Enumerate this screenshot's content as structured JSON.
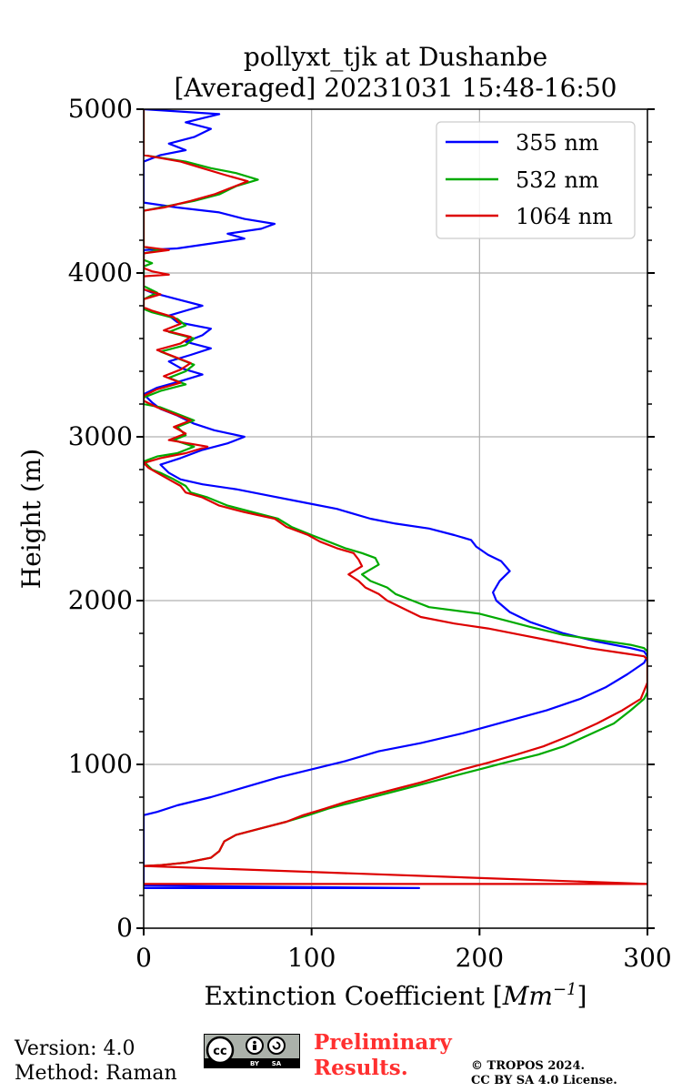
{
  "chart_data": {
    "type": "line",
    "title_line1": "pollyxt_tjk at Dushanbe",
    "title_line2": "[Averaged] 20231031 15:48-16:50",
    "xlabel": "Extinction Coefficient [",
    "xlabel_unit": "Mm",
    "xlabel_exp": "−1",
    "xlabel_end": "]",
    "ylabel": "Height (m)",
    "xlim": [
      0,
      300
    ],
    "ylim": [
      0,
      5000
    ],
    "xticks": [
      "0",
      "100",
      "200",
      "300"
    ],
    "yticks": [
      "0",
      "1000",
      "2000",
      "3000",
      "4000",
      "5000"
    ],
    "grid": true,
    "legend_position": "top-right",
    "series": [
      {
        "name": "355 nm",
        "color": "#0000ff",
        "points": [
          [
            0,
            245
          ],
          [
            164,
            245
          ],
          [
            0,
            260
          ],
          [
            0,
            690
          ],
          [
            8,
            710
          ],
          [
            20,
            750
          ],
          [
            40,
            800
          ],
          [
            60,
            860
          ],
          [
            80,
            920
          ],
          [
            100,
            970
          ],
          [
            120,
            1020
          ],
          [
            140,
            1080
          ],
          [
            165,
            1130
          ],
          [
            190,
            1190
          ],
          [
            215,
            1260
          ],
          [
            240,
            1330
          ],
          [
            260,
            1400
          ],
          [
            275,
            1470
          ],
          [
            288,
            1550
          ],
          [
            298,
            1620
          ],
          [
            300,
            1660
          ],
          [
            298,
            1690
          ],
          [
            290,
            1710
          ],
          [
            270,
            1750
          ],
          [
            250,
            1800
          ],
          [
            230,
            1870
          ],
          [
            218,
            1930
          ],
          [
            210,
            2000
          ],
          [
            208,
            2050
          ],
          [
            212,
            2120
          ],
          [
            218,
            2180
          ],
          [
            213,
            2240
          ],
          [
            205,
            2280
          ],
          [
            198,
            2330
          ],
          [
            195,
            2370
          ],
          [
            185,
            2400
          ],
          [
            170,
            2440
          ],
          [
            150,
            2470
          ],
          [
            135,
            2500
          ],
          [
            115,
            2560
          ],
          [
            95,
            2600
          ],
          [
            75,
            2640
          ],
          [
            55,
            2680
          ],
          [
            35,
            2710
          ],
          [
            22,
            2740
          ],
          [
            15,
            2780
          ],
          [
            10,
            2830
          ],
          [
            22,
            2870
          ],
          [
            35,
            2920
          ],
          [
            50,
            2960
          ],
          [
            60,
            3000
          ],
          [
            42,
            3040
          ],
          [
            30,
            3080
          ],
          [
            20,
            3130
          ],
          [
            10,
            3170
          ],
          [
            5,
            3210
          ],
          [
            0,
            3260
          ],
          [
            8,
            3300
          ],
          [
            22,
            3340
          ],
          [
            35,
            3380
          ],
          [
            22,
            3420
          ],
          [
            15,
            3460
          ],
          [
            28,
            3500
          ],
          [
            40,
            3540
          ],
          [
            25,
            3580
          ],
          [
            35,
            3620
          ],
          [
            40,
            3660
          ],
          [
            20,
            3700
          ],
          [
            15,
            3740
          ],
          [
            35,
            3800
          ],
          [
            20,
            3840
          ],
          [
            5,
            3880
          ],
          [
            0,
            3900
          ],
          [
            0,
            4020
          ],
          [
            0,
            4140
          ],
          [
            20,
            4150
          ],
          [
            40,
            4180
          ],
          [
            60,
            4210
          ],
          [
            50,
            4240
          ],
          [
            70,
            4270
          ],
          [
            78,
            4300
          ],
          [
            60,
            4330
          ],
          [
            45,
            4370
          ],
          [
            20,
            4400
          ],
          [
            0,
            4430
          ],
          [
            0,
            4680
          ],
          [
            10,
            4720
          ],
          [
            25,
            4750
          ],
          [
            15,
            4790
          ],
          [
            30,
            4830
          ],
          [
            40,
            4880
          ],
          [
            25,
            4920
          ],
          [
            45,
            4970
          ],
          [
            0,
            5000
          ]
        ]
      },
      {
        "name": "532 nm",
        "color": "#00aa00",
        "points": [
          [
            0,
            380
          ],
          [
            10,
            385
          ],
          [
            25,
            400
          ],
          [
            40,
            430
          ],
          [
            45,
            470
          ],
          [
            48,
            530
          ],
          [
            55,
            570
          ],
          [
            70,
            610
          ],
          [
            85,
            650
          ],
          [
            98,
            690
          ],
          [
            110,
            730
          ],
          [
            125,
            770
          ],
          [
            140,
            810
          ],
          [
            155,
            850
          ],
          [
            170,
            890
          ],
          [
            185,
            930
          ],
          [
            200,
            970
          ],
          [
            215,
            1010
          ],
          [
            235,
            1060
          ],
          [
            250,
            1110
          ],
          [
            265,
            1180
          ],
          [
            280,
            1250
          ],
          [
            290,
            1330
          ],
          [
            298,
            1400
          ],
          [
            300,
            1440
          ],
          [
            300,
            1690
          ],
          [
            298,
            1710
          ],
          [
            290,
            1730
          ],
          [
            270,
            1760
          ],
          [
            250,
            1790
          ],
          [
            230,
            1840
          ],
          [
            215,
            1880
          ],
          [
            200,
            1920
          ],
          [
            170,
            1960
          ],
          [
            160,
            2000
          ],
          [
            150,
            2040
          ],
          [
            145,
            2080
          ],
          [
            135,
            2120
          ],
          [
            130,
            2160
          ],
          [
            140,
            2220
          ],
          [
            138,
            2260
          ],
          [
            130,
            2290
          ],
          [
            120,
            2320
          ],
          [
            110,
            2360
          ],
          [
            100,
            2400
          ],
          [
            88,
            2450
          ],
          [
            80,
            2500
          ],
          [
            65,
            2540
          ],
          [
            50,
            2580
          ],
          [
            38,
            2630
          ],
          [
            28,
            2660
          ],
          [
            25,
            2700
          ],
          [
            18,
            2740
          ],
          [
            10,
            2780
          ],
          [
            5,
            2800
          ],
          [
            0,
            2850
          ],
          [
            8,
            2880
          ],
          [
            20,
            2900
          ],
          [
            30,
            2940
          ],
          [
            18,
            2980
          ],
          [
            25,
            3010
          ],
          [
            20,
            3060
          ],
          [
            30,
            3100
          ],
          [
            20,
            3140
          ],
          [
            10,
            3180
          ],
          [
            0,
            3200
          ],
          [
            0,
            3240
          ],
          [
            10,
            3280
          ],
          [
            25,
            3320
          ],
          [
            15,
            3360
          ],
          [
            25,
            3400
          ],
          [
            30,
            3440
          ],
          [
            20,
            3480
          ],
          [
            10,
            3520
          ],
          [
            25,
            3560
          ],
          [
            30,
            3600
          ],
          [
            15,
            3640
          ],
          [
            25,
            3680
          ],
          [
            20,
            3720
          ],
          [
            5,
            3760
          ],
          [
            0,
            3780
          ],
          [
            0,
            3840
          ],
          [
            8,
            3880
          ],
          [
            0,
            3920
          ],
          [
            0,
            4040
          ],
          [
            5,
            4060
          ],
          [
            0,
            4080
          ],
          [
            0,
            4120
          ],
          [
            10,
            4140
          ],
          [
            0,
            4160
          ],
          [
            0,
            4380
          ],
          [
            10,
            4400
          ],
          [
            30,
            4440
          ],
          [
            45,
            4480
          ],
          [
            55,
            4530
          ],
          [
            68,
            4570
          ],
          [
            55,
            4610
          ],
          [
            40,
            4640
          ],
          [
            25,
            4680
          ],
          [
            0,
            4720
          ],
          [
            0,
            5000
          ]
        ]
      },
      {
        "name": "1064 nm",
        "color": "#dd0000",
        "points": [
          [
            0,
            270
          ],
          [
            300,
            270
          ],
          [
            0,
            380
          ],
          [
            10,
            385
          ],
          [
            25,
            400
          ],
          [
            40,
            430
          ],
          [
            45,
            470
          ],
          [
            48,
            530
          ],
          [
            55,
            570
          ],
          [
            70,
            610
          ],
          [
            85,
            650
          ],
          [
            95,
            690
          ],
          [
            108,
            730
          ],
          [
            120,
            770
          ],
          [
            135,
            810
          ],
          [
            150,
            850
          ],
          [
            165,
            890
          ],
          [
            178,
            930
          ],
          [
            190,
            970
          ],
          [
            205,
            1010
          ],
          [
            222,
            1060
          ],
          [
            238,
            1110
          ],
          [
            255,
            1180
          ],
          [
            270,
            1250
          ],
          [
            285,
            1330
          ],
          [
            296,
            1400
          ],
          [
            300,
            1500
          ],
          [
            300,
            1640
          ],
          [
            298,
            1660
          ],
          [
            285,
            1680
          ],
          [
            265,
            1710
          ],
          [
            245,
            1750
          ],
          [
            225,
            1790
          ],
          [
            205,
            1830
          ],
          [
            185,
            1860
          ],
          [
            165,
            1900
          ],
          [
            155,
            1950
          ],
          [
            145,
            2000
          ],
          [
            140,
            2040
          ],
          [
            132,
            2080
          ],
          [
            128,
            2120
          ],
          [
            122,
            2160
          ],
          [
            130,
            2210
          ],
          [
            128,
            2250
          ],
          [
            125,
            2290
          ],
          [
            115,
            2320
          ],
          [
            105,
            2360
          ],
          [
            98,
            2400
          ],
          [
            85,
            2450
          ],
          [
            78,
            2500
          ],
          [
            60,
            2540
          ],
          [
            45,
            2580
          ],
          [
            35,
            2630
          ],
          [
            25,
            2660
          ],
          [
            22,
            2700
          ],
          [
            15,
            2740
          ],
          [
            8,
            2780
          ],
          [
            3,
            2810
          ],
          [
            0,
            2840
          ],
          [
            10,
            2870
          ],
          [
            25,
            2900
          ],
          [
            38,
            2940
          ],
          [
            15,
            2980
          ],
          [
            25,
            3020
          ],
          [
            18,
            3060
          ],
          [
            28,
            3100
          ],
          [
            18,
            3140
          ],
          [
            8,
            3180
          ],
          [
            0,
            3220
          ],
          [
            0,
            3250
          ],
          [
            8,
            3290
          ],
          [
            22,
            3330
          ],
          [
            12,
            3370
          ],
          [
            22,
            3410
          ],
          [
            28,
            3450
          ],
          [
            18,
            3490
          ],
          [
            8,
            3530
          ],
          [
            22,
            3570
          ],
          [
            28,
            3610
          ],
          [
            12,
            3650
          ],
          [
            22,
            3690
          ],
          [
            18,
            3730
          ],
          [
            5,
            3770
          ],
          [
            0,
            3790
          ],
          [
            0,
            3840
          ],
          [
            10,
            3870
          ],
          [
            0,
            3900
          ],
          [
            0,
            3980
          ],
          [
            15,
            3990
          ],
          [
            5,
            4010
          ],
          [
            0,
            4030
          ],
          [
            0,
            4120
          ],
          [
            15,
            4140
          ],
          [
            0,
            4160
          ],
          [
            0,
            4380
          ],
          [
            12,
            4400
          ],
          [
            28,
            4440
          ],
          [
            42,
            4480
          ],
          [
            52,
            4520
          ],
          [
            62,
            4560
          ],
          [
            48,
            4600
          ],
          [
            35,
            4640
          ],
          [
            22,
            4680
          ],
          [
            0,
            4720
          ],
          [
            0,
            5000
          ]
        ]
      }
    ]
  },
  "footer": {
    "version": "Version: 4.0",
    "method": "Method: Raman",
    "preliminary_line1": "Preliminary",
    "preliminary_line2": "Results.",
    "copyright_line1": "© TROPOS 2024.",
    "copyright_line2": "CC BY SA 4.0 License."
  },
  "badge": {
    "cc": "cc",
    "by": "BY",
    "sa": "SA"
  }
}
